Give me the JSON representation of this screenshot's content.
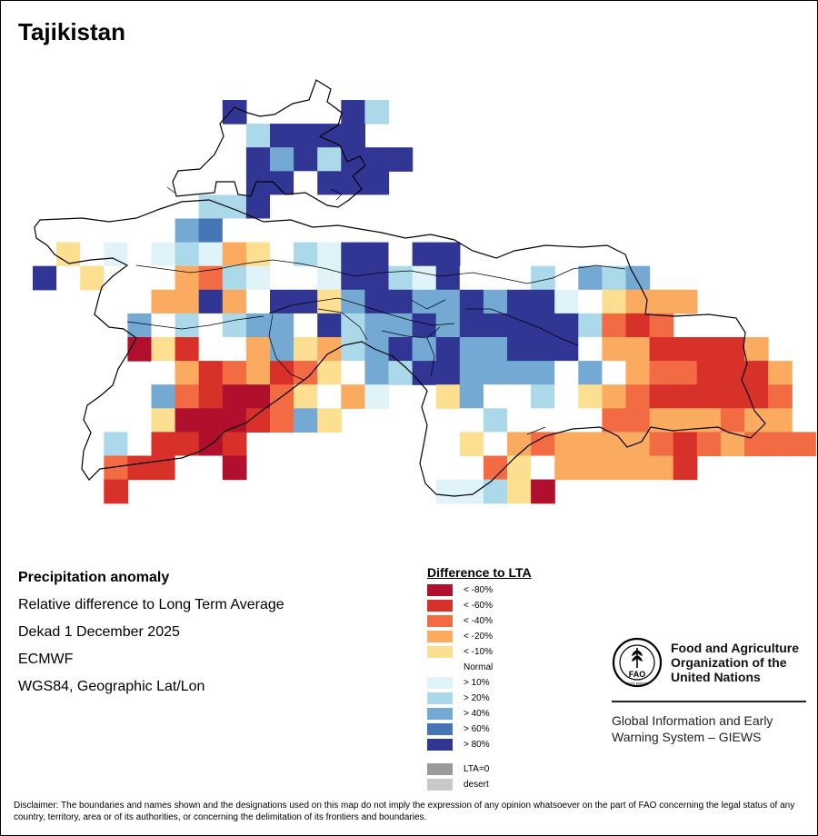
{
  "title": "Tajikistan",
  "info": {
    "heading": "Precipitation anomaly",
    "subtitle": "Relative difference to Long Term Average",
    "period": "Dekad 1 December 2025",
    "source": "ECMWF",
    "projection": "WGS84, Geographic Lat/Lon"
  },
  "legend": {
    "title": "Difference to LTA",
    "classes": [
      {
        "label": "< -80%",
        "color": "#b0102e"
      },
      {
        "label": "< -60%",
        "color": "#d8312a"
      },
      {
        "label": "< -40%",
        "color": "#f26b43"
      },
      {
        "label": "< -20%",
        "color": "#fbab5f"
      },
      {
        "label": "< -10%",
        "color": "#fddf92"
      },
      {
        "label": "Normal",
        "color": "#ffffff"
      },
      {
        "label": "> 10%",
        "color": "#e0f3f8"
      },
      {
        "label": "> 20%",
        "color": "#abd9e9"
      },
      {
        "label": "> 40%",
        "color": "#74a9d4"
      },
      {
        "label": "> 60%",
        "color": "#4575b4"
      },
      {
        "label": "> 80%",
        "color": "#313695"
      }
    ],
    "extra": [
      {
        "label": "LTA=0",
        "color": "#9a9a9a"
      },
      {
        "label": "desert",
        "color": "#c8c8c8"
      }
    ]
  },
  "org": {
    "logo_text": "FAO",
    "logo_motto": "FIAT PANIS",
    "name_lines": [
      "Food and Agriculture",
      "Organization of the",
      "United Nations"
    ],
    "program_lines": [
      "Global Information and Early",
      "Warning System – GIEWS"
    ]
  },
  "disclaimer": "Disclaimer: The boundaries and names shown and the designations used on this map do not imply the expression of any opinion whatsoever on the part of FAO concerning the legal status of any country, territory, area or of its authorities, or concerning the delimitation of its frontiers and boundaries.",
  "grid": {
    "rows": [
      {
        "cells": [
          [
            "vB",
            8
          ],
          [
            "vB",
            13
          ],
          [
            "lB",
            14
          ]
        ]
      },
      {
        "cells": [
          [
            "lB",
            9
          ],
          [
            "vB",
            10
          ],
          [
            "vB",
            11
          ],
          [
            "vB",
            12
          ],
          [
            "vB",
            13
          ]
        ]
      },
      {
        "cells": [
          [
            "vB",
            9
          ],
          [
            "mB",
            10
          ],
          [
            "vB",
            11
          ],
          [
            "lB",
            12
          ],
          [
            "vB",
            13
          ],
          [
            "vB",
            14
          ],
          [
            "vB",
            15
          ]
        ]
      },
      {
        "cells": [
          [
            "vB",
            9
          ],
          [
            "vB",
            10
          ],
          [
            "nN",
            11
          ],
          [
            "vB",
            12
          ],
          [
            "vB",
            13
          ],
          [
            "vB",
            14
          ]
        ]
      },
      {
        "cells": [
          [
            "lB",
            7
          ],
          [
            "lB",
            8
          ],
          [
            "vB",
            9
          ],
          [
            "nN",
            10
          ],
          [
            "nN",
            11
          ],
          [
            "nN",
            12
          ],
          [
            "nN",
            13
          ],
          [
            "nN",
            14
          ]
        ]
      },
      {
        "cells": [
          [
            "mB",
            6
          ],
          [
            "sB",
            7
          ],
          [
            "nN",
            8
          ],
          [
            "nN",
            9
          ],
          [
            "nN",
            10
          ],
          [
            "nN",
            11
          ],
          [
            "nN",
            12
          ],
          [
            "nN",
            13
          ],
          [
            "nN",
            14
          ],
          [
            "nN",
            15
          ]
        ]
      },
      {
        "cells": [
          [
            "sY",
            1
          ],
          [
            "nN",
            2
          ],
          [
            "eB",
            3
          ],
          [
            "nN",
            4
          ],
          [
            "eB",
            5
          ],
          [
            "lB",
            6
          ],
          [
            "eB",
            7
          ],
          [
            "sO",
            8
          ],
          [
            "sY",
            9
          ],
          [
            "nN",
            10
          ],
          [
            "lB",
            11
          ],
          [
            "eB",
            12
          ],
          [
            "vB",
            13
          ],
          [
            "vB",
            14
          ],
          [
            "nN",
            15
          ],
          [
            "vB",
            16
          ],
          [
            "vB",
            17
          ]
        ]
      },
      {
        "cells": [
          [
            "vB",
            0
          ],
          [
            "nN",
            1
          ],
          [
            "sY",
            2
          ],
          [
            "nN",
            3
          ],
          [
            "nN",
            4
          ],
          [
            "nN",
            5
          ],
          [
            "sO",
            6
          ],
          [
            "mO",
            7
          ],
          [
            "lB",
            8
          ],
          [
            "eB",
            9
          ],
          [
            "nN",
            10
          ],
          [
            "nN",
            11
          ],
          [
            "eB",
            12
          ],
          [
            "vB",
            13
          ],
          [
            "vB",
            14
          ],
          [
            "lB",
            15
          ],
          [
            "eB",
            16
          ],
          [
            "vB",
            17
          ],
          [
            "nN",
            18
          ],
          [
            "nN",
            19
          ],
          [
            "nN",
            20
          ],
          [
            "lB",
            21
          ],
          [
            "mB",
            23
          ],
          [
            "lB",
            24
          ],
          [
            "mB",
            25
          ]
        ]
      },
      {
        "cells": [
          [
            "nN",
            4
          ],
          [
            "sO",
            5
          ],
          [
            "sO",
            6
          ],
          [
            "vB",
            7
          ],
          [
            "sO",
            8
          ],
          [
            "nN",
            9
          ],
          [
            "vB",
            10
          ],
          [
            "vB",
            11
          ],
          [
            "sY",
            12
          ],
          [
            "mB",
            13
          ],
          [
            "vB",
            14
          ],
          [
            "vB",
            15
          ],
          [
            "mB",
            16
          ],
          [
            "mB",
            17
          ],
          [
            "vB",
            18
          ],
          [
            "mB",
            19
          ],
          [
            "vB",
            20
          ],
          [
            "vB",
            21
          ],
          [
            "eB",
            22
          ],
          [
            "nN",
            23
          ],
          [
            "sY",
            24
          ],
          [
            "sO",
            25
          ],
          [
            "sO",
            26
          ],
          [
            "sO",
            27
          ]
        ]
      },
      {
        "cells": [
          [
            "mB",
            4
          ],
          [
            "nN",
            5
          ],
          [
            "lB",
            6
          ],
          [
            "nN",
            7
          ],
          [
            "lB",
            8
          ],
          [
            "mB",
            9
          ],
          [
            "mB",
            10
          ],
          [
            "nN",
            11
          ],
          [
            "vB",
            12
          ],
          [
            "lB",
            13
          ],
          [
            "mB",
            14
          ],
          [
            "mB",
            15
          ],
          [
            "vB",
            16
          ],
          [
            "mB",
            17
          ],
          [
            "vB",
            18
          ],
          [
            "vB",
            19
          ],
          [
            "vB",
            20
          ],
          [
            "vB",
            21
          ],
          [
            "vB",
            22
          ],
          [
            "lB",
            23
          ],
          [
            "mO",
            24
          ],
          [
            "dR",
            25
          ],
          [
            "mO",
            26
          ]
        ]
      },
      {
        "cells": [
          [
            "vR",
            4
          ],
          [
            "sY",
            5
          ],
          [
            "dR",
            6
          ],
          [
            "nN",
            7
          ],
          [
            "nN",
            8
          ],
          [
            "sO",
            9
          ],
          [
            "mB",
            10
          ],
          [
            "sY",
            11
          ],
          [
            "sO",
            12
          ],
          [
            "lB",
            13
          ],
          [
            "mB",
            14
          ],
          [
            "vB",
            15
          ],
          [
            "mB",
            16
          ],
          [
            "vB",
            17
          ],
          [
            "mB",
            18
          ],
          [
            "mB",
            19
          ],
          [
            "vB",
            20
          ],
          [
            "vB",
            21
          ],
          [
            "vB",
            22
          ],
          [
            "nN",
            23
          ],
          [
            "sO",
            24
          ],
          [
            "sO",
            25
          ],
          [
            "dR",
            26
          ],
          [
            "dR",
            27
          ],
          [
            "dR",
            28
          ],
          [
            "dR",
            29
          ],
          [
            "sO",
            30
          ]
        ]
      },
      {
        "cells": [
          [
            "nN",
            5
          ],
          [
            "sO",
            6
          ],
          [
            "dR",
            7
          ],
          [
            "mO",
            8
          ],
          [
            "sO",
            9
          ],
          [
            "dR",
            10
          ],
          [
            "mO",
            11
          ],
          [
            "sY",
            12
          ],
          [
            "nN",
            13
          ],
          [
            "mB",
            14
          ],
          [
            "lB",
            15
          ],
          [
            "vB",
            16
          ],
          [
            "vB",
            17
          ],
          [
            "mB",
            18
          ],
          [
            "mB",
            19
          ],
          [
            "mB",
            20
          ],
          [
            "mB",
            21
          ],
          [
            "nN",
            22
          ],
          [
            "mB",
            23
          ],
          [
            "nN",
            24
          ],
          [
            "sO",
            25
          ],
          [
            "mO",
            26
          ],
          [
            "mO",
            27
          ],
          [
            "dR",
            28
          ],
          [
            "dR",
            29
          ],
          [
            "dR",
            30
          ],
          [
            "sO",
            31
          ]
        ]
      },
      {
        "cells": [
          [
            "mB",
            5
          ],
          [
            "mO",
            6
          ],
          [
            "dR",
            7
          ],
          [
            "vR",
            8
          ],
          [
            "vR",
            9
          ],
          [
            "mO",
            10
          ],
          [
            "sY",
            11
          ],
          [
            "nN",
            12
          ],
          [
            "sO",
            13
          ],
          [
            "eB",
            14
          ],
          [
            "sY",
            17
          ],
          [
            "mB",
            18
          ],
          [
            "nN",
            19
          ],
          [
            "nN",
            20
          ],
          [
            "lB",
            21
          ],
          [
            "nN",
            22
          ],
          [
            "sY",
            23
          ],
          [
            "sO",
            24
          ],
          [
            "mO",
            25
          ],
          [
            "dR",
            26
          ],
          [
            "dR",
            27
          ],
          [
            "dR",
            28
          ],
          [
            "dR",
            29
          ],
          [
            "dR",
            30
          ],
          [
            "mO",
            31
          ]
        ]
      },
      {
        "cells": [
          [
            "sY",
            5
          ],
          [
            "vR",
            6
          ],
          [
            "vR",
            7
          ],
          [
            "vR",
            8
          ],
          [
            "dR",
            9
          ],
          [
            "mO",
            10
          ],
          [
            "mB",
            11
          ],
          [
            "sY",
            12
          ],
          [
            "nN",
            18
          ],
          [
            "lB",
            19
          ],
          [
            "nN",
            20
          ],
          [
            "nN",
            21
          ],
          [
            "nN",
            22
          ],
          [
            "nN",
            23
          ],
          [
            "mO",
            24
          ],
          [
            "mO",
            25
          ],
          [
            "sO",
            26
          ],
          [
            "sO",
            27
          ],
          [
            "sO",
            28
          ],
          [
            "mO",
            29
          ],
          [
            "sO",
            30
          ],
          [
            "sO",
            31
          ]
        ]
      },
      {
        "cells": [
          [
            "lB",
            3
          ],
          [
            "nN",
            4
          ],
          [
            "dR",
            5
          ],
          [
            "dR",
            6
          ],
          [
            "vR",
            7
          ],
          [
            "dR",
            8
          ],
          [
            "sY",
            18
          ],
          [
            "nN",
            19
          ],
          [
            "sO",
            20
          ],
          [
            "mO",
            21
          ],
          [
            "sO",
            22
          ],
          [
            "sO",
            23
          ],
          [
            "sO",
            24
          ],
          [
            "sO",
            25
          ],
          [
            "mO",
            26
          ],
          [
            "dR",
            27
          ],
          [
            "mO",
            28
          ],
          [
            "sO",
            29
          ],
          [
            "mO",
            30
          ],
          [
            "mO",
            31
          ],
          [
            "mO",
            32
          ]
        ]
      },
      {
        "cells": [
          [
            "mO",
            3
          ],
          [
            "dR",
            4
          ],
          [
            "dR",
            5
          ],
          [
            "nN",
            6
          ],
          [
            "nN",
            7
          ],
          [
            "vR",
            8
          ],
          [
            "mO",
            19
          ],
          [
            "sY",
            20
          ],
          [
            "nN",
            21
          ],
          [
            "sO",
            22
          ],
          [
            "sO",
            23
          ],
          [
            "sO",
            24
          ],
          [
            "sO",
            25
          ],
          [
            "sO",
            26
          ],
          [
            "dR",
            27
          ]
        ]
      },
      {
        "cells": [
          [
            "dR",
            3
          ],
          [
            "eB",
            17
          ],
          [
            "eB",
            18
          ],
          [
            "lB",
            19
          ],
          [
            "sY",
            20
          ],
          [
            "vR",
            21
          ]
        ]
      }
    ]
  }
}
